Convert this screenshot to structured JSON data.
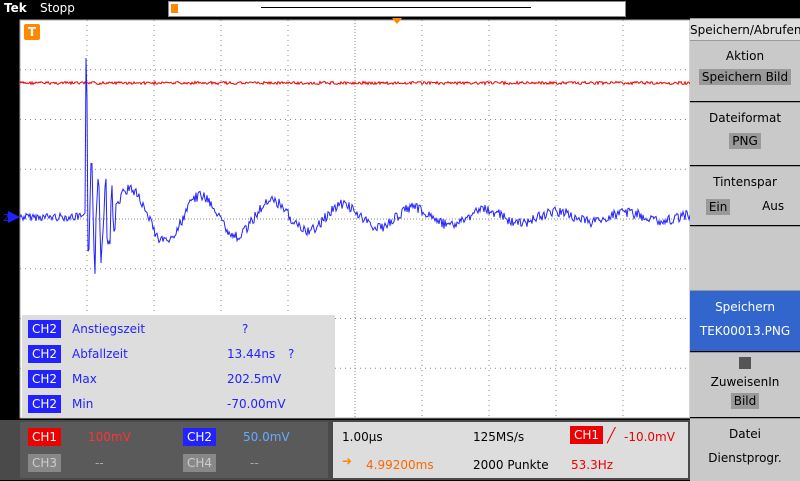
{
  "header": {
    "brand": "Tek",
    "status": "Stopp"
  },
  "markers": {
    "trigger": "T",
    "channel": "2"
  },
  "menu": {
    "title": "Speichern/Abrufen",
    "items": [
      {
        "label": "Aktion",
        "value": "Speichern Bild"
      },
      {
        "label": "Dateiformat",
        "value": "PNG"
      },
      {
        "label": "Tintenspar",
        "options": [
          "Ein",
          "Aus"
        ]
      },
      {
        "label": "Speichern",
        "value": "TEK00013.PNG"
      },
      {
        "label": "ZuweisenIn",
        "value": "Bild"
      },
      {
        "label": "Datei",
        "value": "Dienstprogr."
      }
    ]
  },
  "measurements": [
    {
      "channel": "CH2",
      "name": "Anstiegszeit",
      "value": "?"
    },
    {
      "channel": "CH2",
      "name": "Abfallzeit",
      "value": "13.44ns",
      "flag": "?"
    },
    {
      "channel": "CH2",
      "name": "Max",
      "value": "202.5mV"
    },
    {
      "channel": "CH2",
      "name": "Min",
      "value": "-70.00mV"
    }
  ],
  "status": {
    "channels": [
      {
        "name": "CH1",
        "scale": "100mV"
      },
      {
        "name": "CH2",
        "scale": "50.0mV"
      },
      {
        "name": "CH3",
        "scale": "--"
      },
      {
        "name": "CH4",
        "scale": "--"
      }
    ],
    "timebase": "1.00µs",
    "sample_rate": "125MS/s",
    "trigger_channel": "CH1",
    "trigger_level": "-10.0mV",
    "position": "4.99200ms",
    "record_length": "2000 Punkte",
    "frequency": "53.3Hz"
  }
}
